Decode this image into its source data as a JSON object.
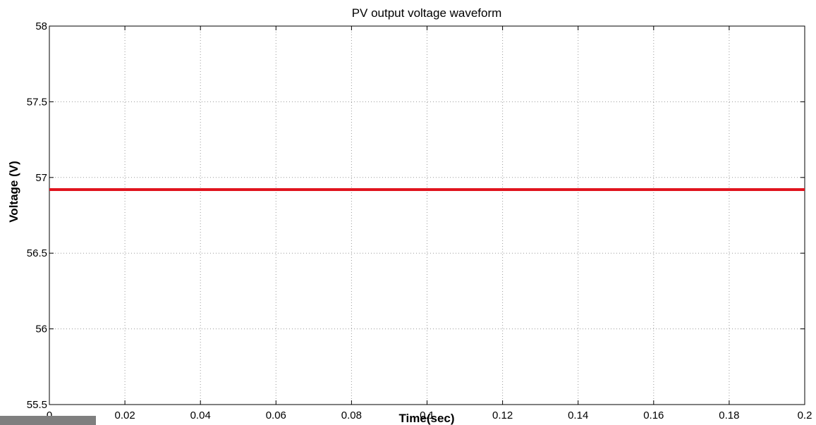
{
  "chart_data": {
    "type": "line",
    "title": "PV output voltage waveform",
    "xlabel": "Time(sec)",
    "ylabel": "Voltage (V)",
    "xlim": [
      0,
      0.2
    ],
    "ylim": [
      55.5,
      58
    ],
    "xticks": [
      0,
      0.02,
      0.04,
      0.06,
      0.08,
      0.1,
      0.12,
      0.14,
      0.16,
      0.18,
      0.2
    ],
    "xtick_labels": [
      "0",
      "0.02",
      "0.04",
      "0.06",
      "0.08",
      "0.1",
      "0.12",
      "0.14",
      "0.16",
      "0.18",
      "0.2"
    ],
    "yticks": [
      55.5,
      56,
      56.5,
      57,
      57.5,
      58
    ],
    "ytick_labels": [
      "55.5",
      "56",
      "56.5",
      "57",
      "57.5",
      "58"
    ],
    "grid": true,
    "series": [
      {
        "color": "#e0141e",
        "x": [
          0,
          0.2
        ],
        "values": [
          56.92,
          56.92
        ]
      }
    ]
  }
}
